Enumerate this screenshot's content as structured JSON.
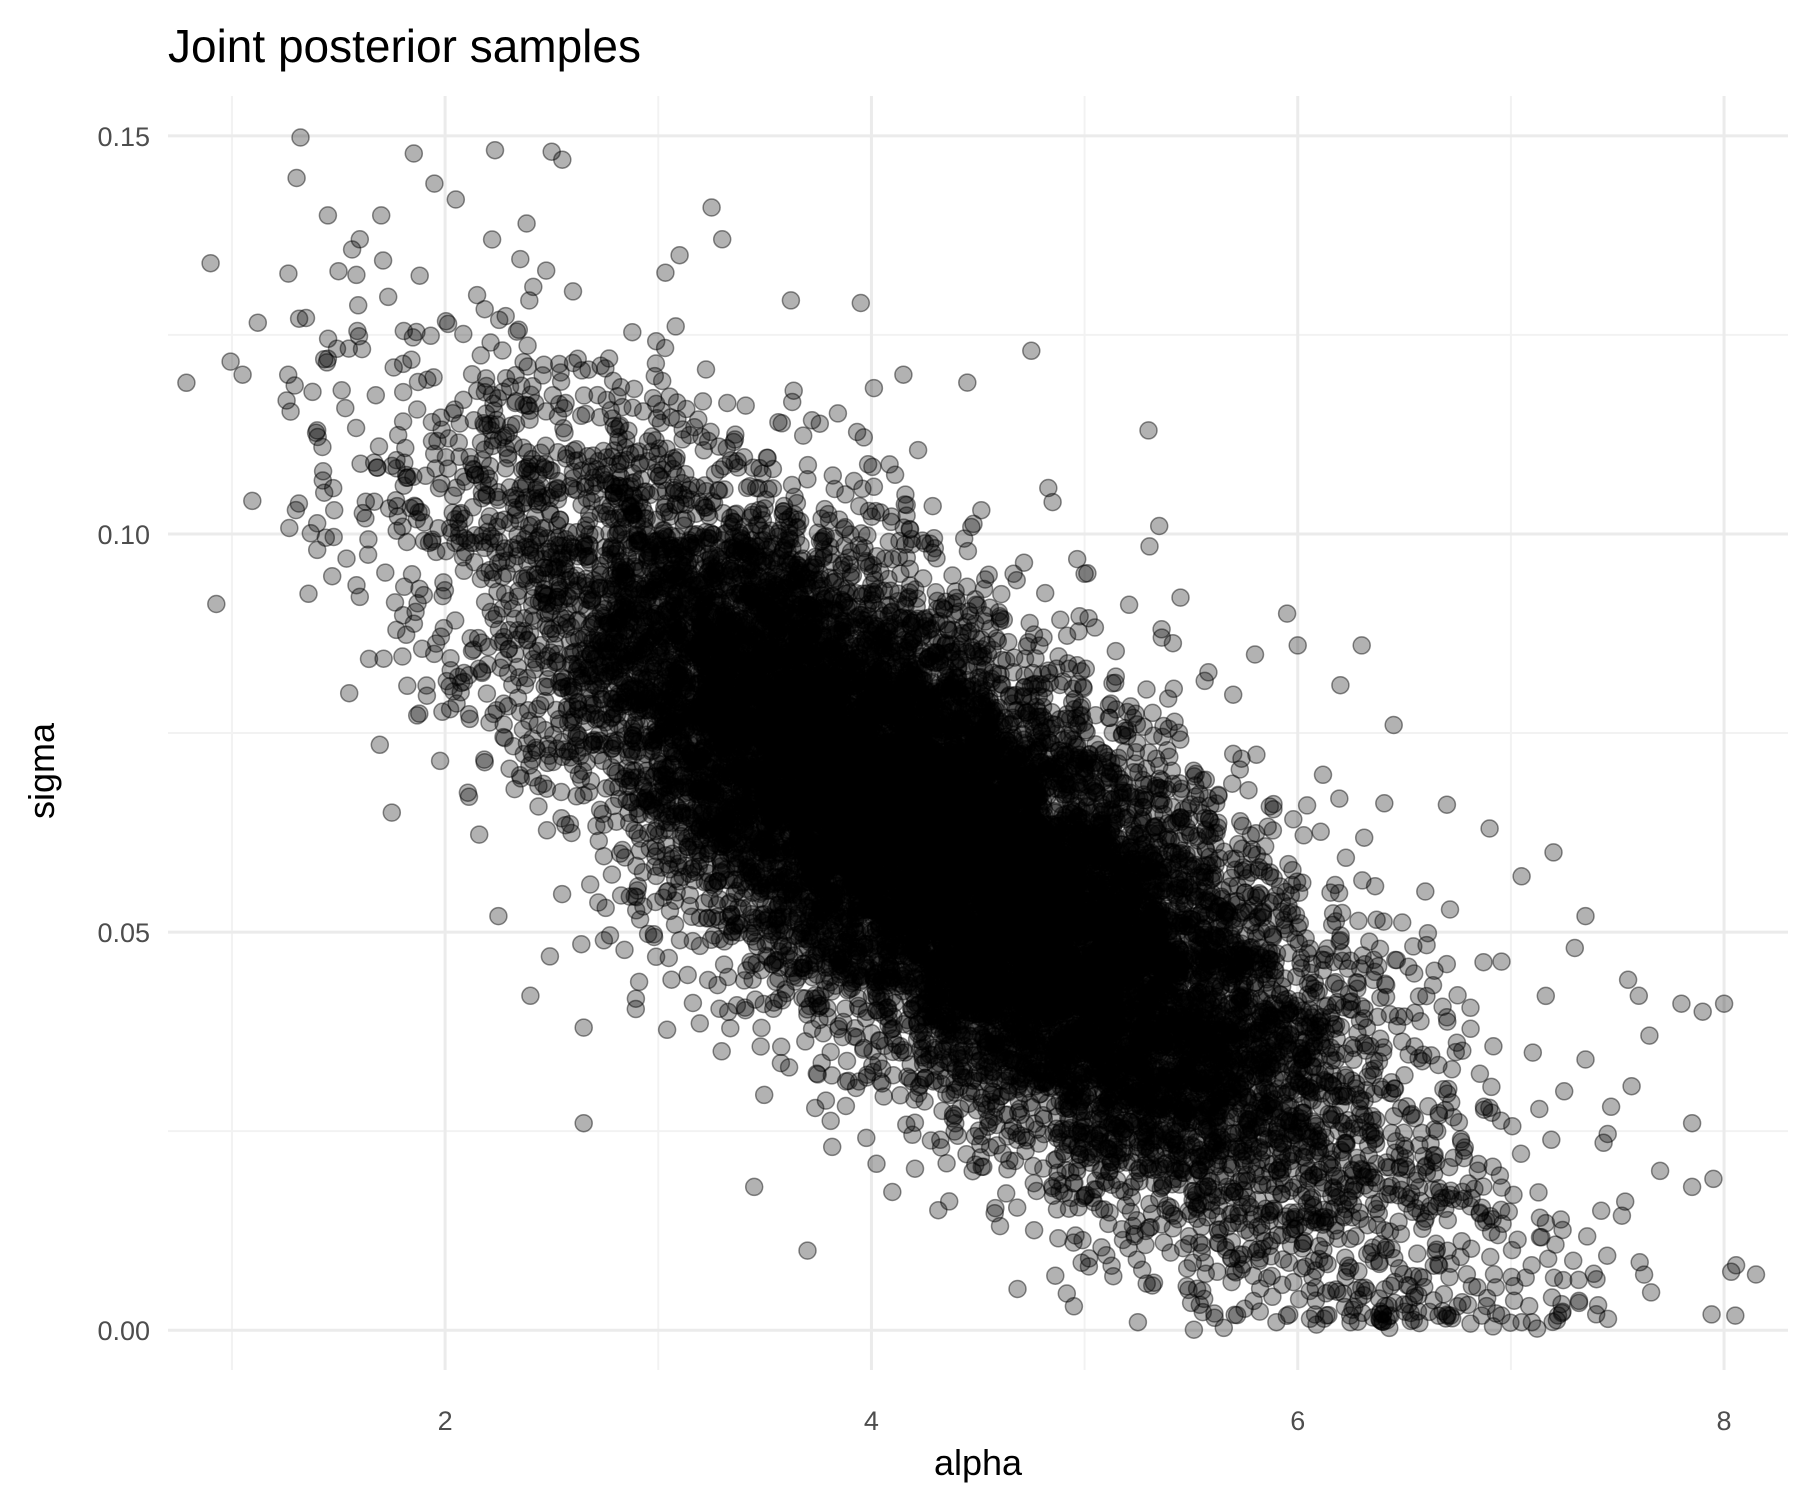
{
  "chart_data": {
    "type": "scatter",
    "title": "Joint posterior samples",
    "xlabel": "alpha",
    "ylabel": "sigma",
    "xlim": [
      0.7,
      8.3
    ],
    "ylim": [
      -0.005,
      0.155
    ],
    "x_ticks": [
      2,
      4,
      6,
      8
    ],
    "x_tick_labels": [
      "2",
      "4",
      "6",
      "8"
    ],
    "x_minor_ticks": [
      1,
      3,
      5,
      7
    ],
    "y_ticks": [
      0.0,
      0.05,
      0.1,
      0.15
    ],
    "y_tick_labels": [
      "0.00",
      "0.05",
      "0.10",
      "0.15"
    ],
    "y_minor_ticks": [
      0.025,
      0.075,
      0.125
    ],
    "grid": true,
    "legend": "none",
    "point_color": "#000000",
    "point_opacity": 0.3,
    "n_points_approx": 16000,
    "distribution": {
      "alpha_mean": 4.3,
      "alpha_sd": 1.0,
      "sigma_mean": 0.061,
      "sigma_sd": 0.023,
      "correlation": -0.78
    },
    "points": [
      [
        0.9,
        0.134
      ],
      [
        1.05,
        0.12
      ],
      [
        1.3,
        0.103
      ],
      [
        1.4,
        0.113
      ],
      [
        1.45,
        0.14
      ],
      [
        1.5,
        0.133
      ],
      [
        1.6,
        0.137
      ],
      [
        1.45,
        0.122
      ],
      [
        1.7,
        0.14
      ],
      [
        2.5,
        0.148
      ],
      [
        2.55,
        0.147
      ],
      [
        1.95,
        0.144
      ],
      [
        2.05,
        0.142
      ],
      [
        3.25,
        0.141
      ],
      [
        3.3,
        0.137
      ],
      [
        3.1,
        0.135
      ],
      [
        2.15,
        0.13
      ],
      [
        3.95,
        0.129
      ],
      [
        4.15,
        0.12
      ],
      [
        4.75,
        0.123
      ],
      [
        4.45,
        0.119
      ],
      [
        5.3,
        0.113
      ],
      [
        5.35,
        0.101
      ],
      [
        4.85,
        0.104
      ],
      [
        5.0,
        0.095
      ],
      [
        5.45,
        0.092
      ],
      [
        5.95,
        0.09
      ],
      [
        6.0,
        0.086
      ],
      [
        6.3,
        0.086
      ],
      [
        6.2,
        0.081
      ],
      [
        6.45,
        0.076
      ],
      [
        6.7,
        0.066
      ],
      [
        6.9,
        0.063
      ],
      [
        7.2,
        0.06
      ],
      [
        7.05,
        0.057
      ],
      [
        7.35,
        0.052
      ],
      [
        7.3,
        0.048
      ],
      [
        7.55,
        0.044
      ],
      [
        7.6,
        0.042
      ],
      [
        7.8,
        0.041
      ],
      [
        7.9,
        0.04
      ],
      [
        8.0,
        0.041
      ],
      [
        7.65,
        0.037
      ],
      [
        7.85,
        0.026
      ],
      [
        7.7,
        0.02
      ],
      [
        7.95,
        0.019
      ],
      [
        7.85,
        0.018
      ],
      [
        8.15,
        0.007
      ],
      [
        7.4,
        0.002
      ],
      [
        7.05,
        0.001
      ],
      [
        6.75,
        0.003
      ],
      [
        5.9,
        0.001
      ],
      [
        5.25,
        0.001
      ],
      [
        4.95,
        0.003
      ],
      [
        3.7,
        0.01
      ],
      [
        3.45,
        0.018
      ],
      [
        2.65,
        0.026
      ],
      [
        2.4,
        0.042
      ],
      [
        2.25,
        0.052
      ],
      [
        1.75,
        0.065
      ],
      [
        1.55,
        0.08
      ],
      [
        1.4,
        0.098
      ],
      [
        2.65,
        0.038
      ],
      [
        7.25,
        0.03
      ],
      [
        7.35,
        0.034
      ]
    ]
  }
}
